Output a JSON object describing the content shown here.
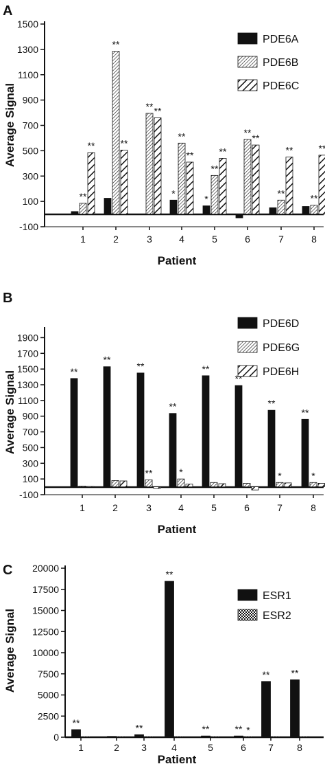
{
  "colors": {
    "ink": "#111111",
    "background": "#ffffff"
  },
  "chart_data": [
    {
      "type": "bar",
      "panel_label": "A",
      "xlabel": "Patient",
      "ylabel": "Average Signal",
      "categories": [
        "1",
        "2",
        "3",
        "4",
        "5",
        "6",
        "7",
        "8"
      ],
      "ylim": [
        -100,
        1500
      ],
      "yticks": [
        "-100",
        "100",
        "300",
        "500",
        "700",
        "900",
        "1100",
        "1300",
        "1500"
      ],
      "legend_position": "top-right",
      "series": [
        {
          "name": "PDE6A",
          "fill": "solid",
          "values": [
            20,
            125,
            0,
            110,
            65,
            -30,
            50,
            60
          ],
          "annotations": [
            "",
            "",
            "",
            "*",
            "*",
            "",
            "",
            ""
          ]
        },
        {
          "name": "PDE6B",
          "fill": "dense-hatch",
          "values": [
            85,
            1285,
            795,
            560,
            305,
            590,
            110,
            70
          ],
          "annotations": [
            "**",
            "**",
            "**",
            "**",
            "**",
            "**",
            "**",
            "**"
          ]
        },
        {
          "name": "PDE6C",
          "fill": "wide-hatch",
          "values": [
            485,
            505,
            760,
            410,
            440,
            545,
            450,
            465
          ],
          "annotations": [
            "**",
            "**",
            "**",
            "**",
            "**",
            "**",
            "**",
            "**"
          ]
        }
      ]
    },
    {
      "type": "bar",
      "panel_label": "B",
      "xlabel": "Patient",
      "ylabel": "Average Signal",
      "categories": [
        "1",
        "2",
        "3",
        "4",
        "5",
        "6",
        "7",
        "8"
      ],
      "ylim": [
        -100,
        2000
      ],
      "yticks": [
        "-100",
        "100",
        "300",
        "500",
        "700",
        "900",
        "1100",
        "1300",
        "1500",
        "1700",
        "1900"
      ],
      "legend_position": "top-right",
      "series": [
        {
          "name": "PDE6D",
          "fill": "solid",
          "values": [
            1380,
            1530,
            1450,
            935,
            1415,
            1290,
            975,
            860
          ],
          "annotations": [
            "**",
            "**",
            "**",
            "**",
            "**",
            "**",
            "**",
            "**"
          ]
        },
        {
          "name": "PDE6G",
          "fill": "dense-hatch",
          "values": [
            10,
            80,
            90,
            100,
            55,
            45,
            55,
            55
          ],
          "annotations": [
            "",
            "",
            "**",
            "*",
            "",
            "",
            "*",
            "*"
          ]
        },
        {
          "name": "PDE6H",
          "fill": "wide-hatch",
          "values": [
            5,
            75,
            -20,
            35,
            40,
            -40,
            50,
            45
          ],
          "annotations": [
            "",
            "",
            "",
            "",
            "",
            "",
            "",
            ""
          ]
        }
      ]
    },
    {
      "type": "bar",
      "panel_label": "C",
      "xlabel": "Patient",
      "ylabel": "Average Signal",
      "categories": [
        "1",
        "2",
        "3",
        "4",
        "5",
        "6",
        "7",
        "8"
      ],
      "ylim": [
        0,
        20000
      ],
      "yticks": [
        "0",
        "2500",
        "5000",
        "7500",
        "10000",
        "12500",
        "15000",
        "17500",
        "20000"
      ],
      "legend_position": "top-right",
      "series": [
        {
          "name": "ESR1",
          "fill": "solid",
          "values": [
            900,
            100,
            300,
            18450,
            150,
            150,
            6600,
            6800
          ],
          "annotations": [
            "**",
            "",
            "**",
            "**",
            "**",
            "**",
            "**",
            "**"
          ]
        },
        {
          "name": "ESR2",
          "fill": "checker",
          "values": [
            50,
            60,
            60,
            60,
            60,
            60,
            60,
            60
          ],
          "annotations": [
            "",
            "",
            "",
            "",
            "",
            "*",
            "",
            ""
          ]
        }
      ]
    }
  ]
}
